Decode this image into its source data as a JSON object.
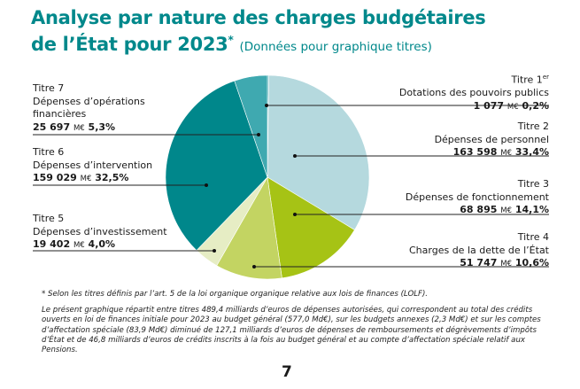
{
  "title": {
    "line1": "Analyse par nature des charges budgétaires",
    "line2": "de l’État pour 2023",
    "asterisk": "*",
    "subtitle": "(Données pour graphique titres)"
  },
  "chart_data": {
    "type": "pie",
    "unit": "M€",
    "slices": [
      {
        "title": "Titre 1",
        "title_sup": "er",
        "label": "Dotations des pouvoirs publics",
        "value": 1077,
        "value_text": "1 077",
        "percent": "0,2%",
        "color": "#3fa9b0"
      },
      {
        "title": "Titre 2",
        "title_sup": "",
        "label": "Dépenses de personnel",
        "value": 163598,
        "value_text": "163 598",
        "percent": "33,4%",
        "color": "#b5d9de"
      },
      {
        "title": "Titre 3",
        "title_sup": "",
        "label": "Dépenses de fonctionnement",
        "value": 68895,
        "value_text": "68 895",
        "percent": "14,1%",
        "color": "#a6c315"
      },
      {
        "title": "Titre 4",
        "title_sup": "",
        "label": "Charges de la dette de l’État",
        "value": 51747,
        "value_text": "51 747",
        "percent": "10,6%",
        "color": "#c3d462"
      },
      {
        "title": "Titre 5",
        "title_sup": "",
        "label": "Dépenses d’investissement",
        "value": 19402,
        "value_text": "19 402",
        "percent": "4,0%",
        "color": "#e6edc4"
      },
      {
        "title": "Titre 6",
        "title_sup": "",
        "label": "Dépenses d’intervention",
        "value": 159029,
        "value_text": "159 029",
        "percent": "32,5%",
        "color": "#00878b"
      },
      {
        "title": "Titre 7",
        "title_sup": "",
        "label": "Dépenses d’opérations financières",
        "label_lines": [
          "Dépenses d’opérations",
          "financières"
        ],
        "value": 25697,
        "value_text": "25 697",
        "percent": "5,3%",
        "color": "#3fa9b0"
      }
    ]
  },
  "footnote": "* Selon les titres définis par l’art. 5 de la loi organique organique relative aux lois de finances (LOLF).",
  "paragraph": "Le présent graphique répartit entre titres 489,4 milliards d’euros de dépenses autorisées, qui correspondent au total des crédits ouverts en loi de finances initiale pour 2023 au budget général (577,0 Md€), sur les budgets annexes (2,3 Md€) et sur les comptes d’affectation spéciale (83,9 Md€) diminué de 127,1 milliards d’euros de dépenses de remboursements et dégrèvements d’impôts d’État et de 46,8 milliards d’euros de crédits inscrits à la fois au budget général et au compte d’affectation spéciale relatif aux Pensions.",
  "page_number": "7"
}
